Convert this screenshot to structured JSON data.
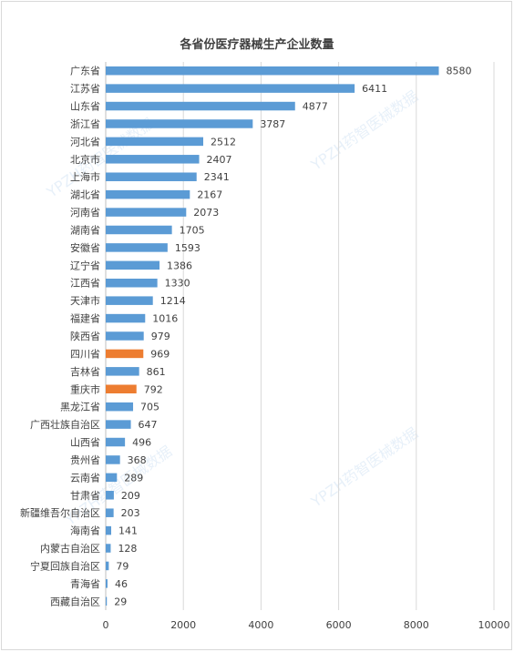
{
  "chart_data": {
    "type": "bar",
    "orientation": "horizontal",
    "title": "各省份医疗器械生产企业数量",
    "xlim": [
      0,
      10000
    ],
    "xticks": [
      0,
      2000,
      4000,
      6000,
      8000,
      10000
    ],
    "grid": true,
    "categories": [
      "广东省",
      "江苏省",
      "山东省",
      "浙江省",
      "河北省",
      "北京市",
      "上海市",
      "湖北省",
      "河南省",
      "湖南省",
      "安徽省",
      "辽宁省",
      "江西省",
      "天津市",
      "福建省",
      "陕西省",
      "四川省",
      "吉林省",
      "重庆市",
      "黑龙江省",
      "广西壮族自治区",
      "山西省",
      "贵州省",
      "云南省",
      "甘肃省",
      "新疆维吾尔自治区",
      "海南省",
      "内蒙古自治区",
      "宁夏回族自治区",
      "青海省",
      "西藏自治区"
    ],
    "values": [
      8580,
      6411,
      4877,
      3787,
      2512,
      2407,
      2341,
      2167,
      2073,
      1705,
      1593,
      1386,
      1330,
      1214,
      1016,
      979,
      969,
      861,
      792,
      705,
      647,
      496,
      368,
      289,
      209,
      203,
      141,
      128,
      79,
      46,
      29
    ],
    "highlight": [
      "四川省",
      "重庆市"
    ],
    "colors": {
      "default": "#5b9bd5",
      "highlight": "#ed7d31",
      "grid": "#d9d9d9"
    }
  },
  "watermark": "YPZH药智医械数据"
}
